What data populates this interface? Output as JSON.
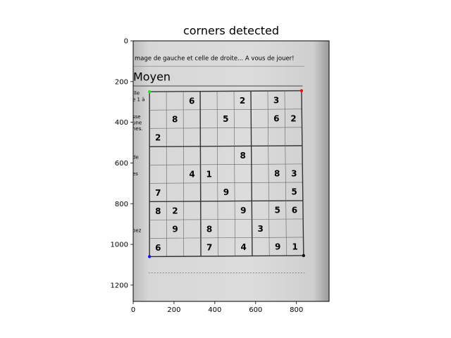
{
  "chart_data": {
    "type": "image",
    "title": "corners detected",
    "xlabel": "",
    "ylabel": "",
    "xlim": [
      0,
      960
    ],
    "ylim": [
      1280,
      0
    ],
    "xticks": [
      0,
      200,
      400,
      600,
      800
    ],
    "yticks": [
      0,
      200,
      400,
      600,
      800,
      1000,
      1200
    ],
    "image_text": {
      "instruction": "mage de gauche et celle de droite... A vous de jouer!",
      "level": "Moyen",
      "margin_words": [
        "ille",
        "e 1 à",
        "sse",
        "une",
        "nes.",
        "de",
        "es",
        "pez"
      ]
    },
    "sudoku": [
      [
        0,
        0,
        6,
        0,
        0,
        2,
        0,
        3,
        0
      ],
      [
        0,
        8,
        0,
        0,
        5,
        0,
        0,
        6,
        2
      ],
      [
        2,
        0,
        0,
        0,
        0,
        0,
        0,
        0,
        0
      ],
      [
        0,
        0,
        0,
        0,
        0,
        8,
        0,
        0,
        0
      ],
      [
        0,
        0,
        4,
        1,
        0,
        0,
        0,
        8,
        3
      ],
      [
        7,
        0,
        0,
        0,
        9,
        0,
        0,
        0,
        5
      ],
      [
        8,
        2,
        0,
        0,
        0,
        9,
        0,
        5,
        6
      ],
      [
        0,
        9,
        0,
        8,
        0,
        0,
        3,
        0,
        0
      ],
      [
        6,
        0,
        0,
        7,
        0,
        4,
        0,
        9,
        1
      ]
    ],
    "corners": [
      {
        "name": "top-left",
        "x": 80,
        "y": 250,
        "color": "#22dd22"
      },
      {
        "name": "top-right",
        "x": 825,
        "y": 245,
        "color": "#ee1111"
      },
      {
        "name": "bottom-left",
        "x": 80,
        "y": 1060,
        "color": "#1111ee"
      },
      {
        "name": "bottom-right",
        "x": 835,
        "y": 1055,
        "color": "#111111"
      }
    ]
  }
}
